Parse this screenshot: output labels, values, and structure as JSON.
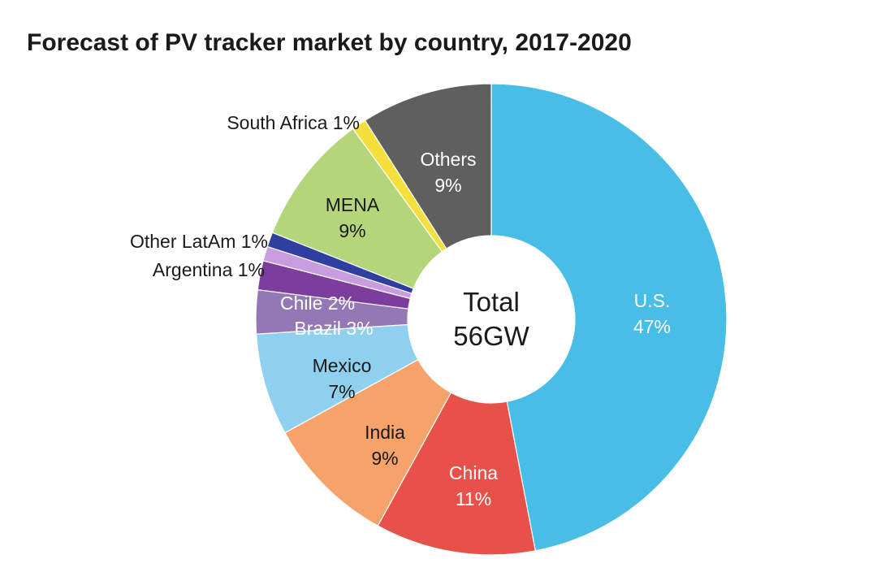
{
  "chart_data": {
    "type": "pie",
    "title": "Forecast of PV tracker market by country, 2017-2020",
    "center_label": {
      "line1": "Total",
      "line2": "56GW"
    },
    "slices": [
      {
        "name": "U.S.",
        "value": 47,
        "value_label": "47%",
        "color": "#48bde6",
        "label_color": "#ffffff"
      },
      {
        "name": "China",
        "value": 11,
        "value_label": "11%",
        "color": "#e8504a",
        "label_color": "#ffffff"
      },
      {
        "name": "India",
        "value": 9,
        "value_label": "9%",
        "color": "#f5a26b",
        "label_color": "#1a1a1a"
      },
      {
        "name": "Mexico",
        "value": 7,
        "value_label": "7%",
        "color": "#8fd0ef",
        "label_color": "#1a1a1a"
      },
      {
        "name": "Brazil",
        "value": 3,
        "value_label": "3%",
        "color": "#9478b6",
        "label_color": "#ffffff"
      },
      {
        "name": "Chile",
        "value": 2,
        "value_label": "2%",
        "color": "#7c3d9c",
        "label_color": "#ffffff"
      },
      {
        "name": "Argentina",
        "value": 1,
        "value_label": "1%",
        "color": "#c79de0",
        "label_color": "#1a1a1a"
      },
      {
        "name": "Other LatAm",
        "value": 1,
        "value_label": "1%",
        "color": "#2e3fa0",
        "label_color": "#1a1a1a"
      },
      {
        "name": "MENA",
        "value": 9,
        "value_label": "9%",
        "color": "#b4d57a",
        "label_color": "#1a1a1a"
      },
      {
        "name": "South Africa",
        "value": 1,
        "value_label": "1%",
        "color": "#f5df3c",
        "label_color": "#1a1a1a"
      },
      {
        "name": "Others",
        "value": 9,
        "value_label": "9%",
        "color": "#5f5f5f",
        "label_color": "#ffffff"
      }
    ],
    "legend": "none"
  }
}
